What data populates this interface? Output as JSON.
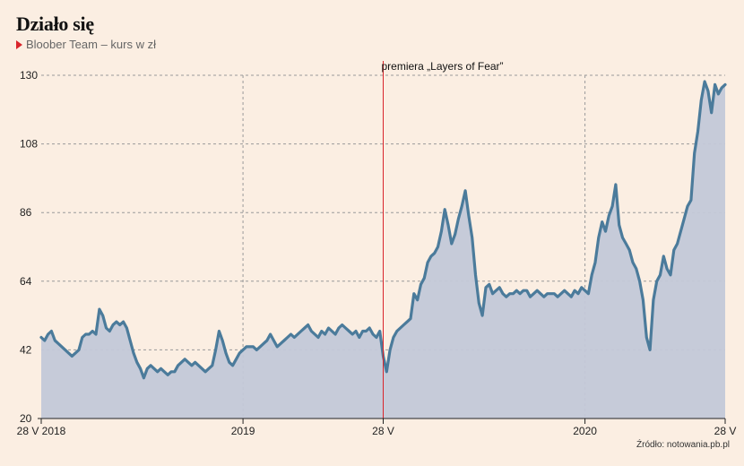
{
  "title": "Działo się",
  "subtitle": "Bloober Team – kurs w zł",
  "source": "Źródło: notowania.pb.pl",
  "colors": {
    "background": "#fbeee2",
    "line": "#4b7b9b",
    "area": "#c3c8d8",
    "marker": "#d9252b",
    "grid": "#9a9a9a"
  },
  "chart_data": {
    "type": "area",
    "ylabel": "",
    "xlabel": "",
    "ylim": [
      20,
      130
    ],
    "xlim": [
      0,
      100
    ],
    "y_ticks": [
      20,
      42,
      64,
      86,
      108,
      130
    ],
    "y_tick_labels": [
      "20",
      "42",
      "64",
      "86",
      "108",
      "130"
    ],
    "x_ticks": [
      {
        "pos": 0,
        "label": "28 V 2018"
      },
      {
        "pos": 29.5,
        "label": "2019"
      },
      {
        "pos": 50,
        "label": "28 V"
      },
      {
        "pos": 79.5,
        "label": "2020"
      },
      {
        "pos": 100,
        "label": "28 V"
      }
    ],
    "grid": true,
    "annotations": [
      {
        "x": 50,
        "label": "premiera „Layers of Fear”"
      }
    ],
    "series": [
      {
        "x": [
          0,
          0.5,
          1,
          1.5,
          2,
          2.5,
          3,
          3.5,
          4,
          4.5,
          5,
          5.5,
          6,
          6.5,
          7,
          7.5,
          8,
          8.5,
          9,
          9.5,
          10,
          10.5,
          11,
          11.5,
          12,
          12.5,
          13,
          13.5,
          14,
          14.5,
          15,
          15.5,
          16,
          16.5,
          17,
          17.5,
          18,
          18.5,
          19,
          19.5,
          20,
          20.5,
          21,
          21.5,
          22,
          22.5,
          23,
          23.5,
          24,
          24.5,
          25,
          25.5,
          26,
          26.5,
          27,
          27.5,
          28,
          28.5,
          29,
          29.5,
          30,
          30.5,
          31,
          31.5,
          32,
          32.5,
          33,
          33.5,
          34,
          34.5,
          35,
          35.5,
          36,
          36.5,
          37,
          37.5,
          38,
          38.5,
          39,
          39.5,
          40,
          40.5,
          41,
          41.5,
          42,
          42.5,
          43,
          43.5,
          44,
          44.5,
          45,
          45.5,
          46,
          46.5,
          47,
          47.5,
          48,
          48.5,
          49,
          49.5,
          50,
          50.5,
          51,
          51.5,
          52,
          52.5,
          53,
          53.5,
          54,
          54.5,
          55,
          55.5,
          56,
          56.5,
          57,
          57.5,
          58,
          58.5,
          59,
          59.5,
          60,
          60.5,
          61,
          61.5,
          62,
          62.5,
          63,
          63.5,
          64,
          64.5,
          65,
          65.5,
          66,
          66.5,
          67,
          67.5,
          68,
          68.5,
          69,
          69.5,
          70,
          70.5,
          71,
          71.5,
          72,
          72.5,
          73,
          73.5,
          74,
          74.5,
          75,
          75.5,
          76,
          76.5,
          77,
          77.5,
          78,
          78.5,
          79,
          79.5,
          80,
          80.5,
          81,
          81.5,
          82,
          82.5,
          83,
          83.5,
          84,
          84.5,
          85,
          85.5,
          86,
          86.5,
          87,
          87.5,
          88,
          88.5,
          89,
          89.5,
          90,
          90.5,
          91,
          91.5,
          92,
          92.5,
          93,
          93.5,
          94,
          94.5,
          95,
          95.5,
          96,
          96.5,
          97,
          97.5,
          98,
          98.5,
          99,
          99.5,
          100
        ],
        "values": [
          46,
          45,
          47,
          48,
          45,
          44,
          43,
          42,
          41,
          40,
          41,
          42,
          46,
          47,
          47,
          48,
          47,
          55,
          53,
          49,
          48,
          50,
          51,
          50,
          51,
          49,
          45,
          41,
          38,
          36,
          33,
          36,
          37,
          36,
          35,
          36,
          35,
          34,
          35,
          35,
          37,
          38,
          39,
          38,
          37,
          38,
          37,
          36,
          35,
          36,
          37,
          42,
          48,
          45,
          41,
          38,
          37,
          39,
          41,
          42,
          43,
          43,
          43,
          42,
          43,
          44,
          45,
          47,
          45,
          43,
          44,
          45,
          46,
          47,
          46,
          47,
          48,
          49,
          50,
          48,
          47,
          46,
          48,
          47,
          49,
          48,
          47,
          49,
          50,
          49,
          48,
          47,
          48,
          46,
          48,
          48,
          49,
          47,
          46,
          48,
          40,
          35,
          42,
          46,
          48,
          49,
          50,
          51,
          52,
          60,
          58,
          63,
          65,
          70,
          72,
          73,
          75,
          80,
          87,
          82,
          76,
          79,
          84,
          88,
          93,
          85,
          78,
          66,
          57,
          53,
          62,
          63,
          60,
          61,
          62,
          60,
          59,
          60,
          60,
          61,
          60,
          61,
          61,
          59,
          60,
          61,
          60,
          59,
          60,
          60,
          60,
          59,
          60,
          61,
          60,
          59,
          61,
          60,
          62,
          61,
          60,
          66,
          70,
          78,
          83,
          80,
          85,
          88,
          95,
          82,
          78,
          76,
          74,
          70,
          68,
          64,
          58,
          46,
          42,
          58,
          64,
          66,
          72,
          68,
          66,
          74,
          76,
          80,
          84,
          88,
          90,
          105,
          112,
          122,
          128,
          125,
          118,
          127,
          124,
          126,
          127
        ]
      }
    ]
  }
}
